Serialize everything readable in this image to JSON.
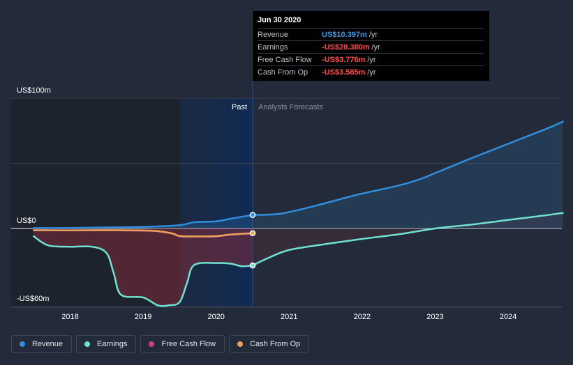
{
  "chart_data": {
    "type": "line",
    "title": "",
    "y_unit": "US$m",
    "ylim": [
      -60,
      100
    ],
    "xlim": [
      2017.5,
      2024.75
    ],
    "y_tick_labels": [
      {
        "value": 100,
        "label": "US$100m"
      },
      {
        "value": 0,
        "label": "US$0"
      },
      {
        "value": -60,
        "label": "-US$60m"
      }
    ],
    "x_ticks": [
      2018,
      2019,
      2020,
      2021,
      2022,
      2023,
      2024
    ],
    "x_tick_labels": [
      "2018",
      "2019",
      "2020",
      "2021",
      "2022",
      "2023",
      "2024"
    ],
    "past_label": "Past",
    "forecast_label": "Analysts Forecasts",
    "divider_x": 2020.5,
    "series": [
      {
        "name": "Revenue",
        "color": "#2f8fdf",
        "points": [
          [
            2017.5,
            0.3
          ],
          [
            2018.0,
            0.4
          ],
          [
            2018.5,
            0.8
          ],
          [
            2019.0,
            1.2
          ],
          [
            2019.5,
            2.5
          ],
          [
            2019.7,
            4.8
          ],
          [
            2020.0,
            5.5
          ],
          [
            2020.2,
            7.5
          ],
          [
            2020.5,
            10.4
          ]
        ],
        "forecast": [
          [
            2020.5,
            10.4
          ],
          [
            2020.8,
            10.8
          ],
          [
            2021.0,
            12.6
          ],
          [
            2021.4,
            18
          ],
          [
            2021.8,
            24
          ],
          [
            2022.0,
            26.8
          ],
          [
            2022.5,
            33
          ],
          [
            2022.8,
            38
          ],
          [
            2023.0,
            42.5
          ],
          [
            2023.5,
            54
          ],
          [
            2024.0,
            65
          ],
          [
            2024.5,
            76
          ],
          [
            2024.75,
            82
          ]
        ]
      },
      {
        "name": "Earnings",
        "color": "#6fe3d0",
        "points": [
          [
            2017.5,
            -6
          ],
          [
            2017.7,
            -13
          ],
          [
            2018.0,
            -14
          ],
          [
            2018.3,
            -14
          ],
          [
            2018.5,
            -19
          ],
          [
            2018.6,
            -35
          ],
          [
            2018.7,
            -51
          ],
          [
            2019.0,
            -53
          ],
          [
            2019.2,
            -59
          ],
          [
            2019.35,
            -59
          ],
          [
            2019.5,
            -56.5
          ],
          [
            2019.6,
            -42
          ],
          [
            2019.7,
            -28
          ],
          [
            2020.0,
            -26.5
          ],
          [
            2020.2,
            -27
          ],
          [
            2020.35,
            -29
          ],
          [
            2020.5,
            -28.4
          ]
        ],
        "forecast": [
          [
            2020.5,
            -28.4
          ],
          [
            2020.7,
            -23
          ],
          [
            2021.0,
            -16.5
          ],
          [
            2021.5,
            -12
          ],
          [
            2022.0,
            -8
          ],
          [
            2022.5,
            -4.5
          ],
          [
            2023.0,
            0
          ],
          [
            2023.5,
            3
          ],
          [
            2024.0,
            6.5
          ],
          [
            2024.5,
            10
          ],
          [
            2024.75,
            12
          ]
        ]
      },
      {
        "name": "Free Cash Flow",
        "color": "#c94677",
        "points": [
          [
            2017.5,
            -1.4
          ],
          [
            2018.0,
            -1.5
          ],
          [
            2018.5,
            -1.4
          ],
          [
            2019.0,
            -1.7
          ],
          [
            2019.2,
            -2.2
          ],
          [
            2019.4,
            -4
          ],
          [
            2019.5,
            -6
          ],
          [
            2019.7,
            -6.3
          ],
          [
            2020.0,
            -6.1
          ],
          [
            2020.2,
            -4.8
          ],
          [
            2020.5,
            -3.8
          ]
        ]
      },
      {
        "name": "Cash From Op",
        "color": "#e8a45a",
        "points": [
          [
            2017.5,
            -1.3
          ],
          [
            2018.0,
            -1.4
          ],
          [
            2018.5,
            -1.3
          ],
          [
            2019.0,
            -1.5
          ],
          [
            2019.2,
            -2
          ],
          [
            2019.4,
            -3.8
          ],
          [
            2019.5,
            -5.8
          ],
          [
            2019.7,
            -6.1
          ],
          [
            2020.0,
            -5.9
          ],
          [
            2020.2,
            -4.6
          ],
          [
            2020.5,
            -3.6
          ]
        ]
      }
    ],
    "highlight": {
      "x": 2020.5,
      "date": "Jun 30 2020",
      "rows": [
        {
          "label": "Revenue",
          "value": "US$10.397m",
          "unit": "/yr",
          "color": "#3d99e8"
        },
        {
          "label": "Earnings",
          "value": "-US$28.380m",
          "unit": "/yr",
          "color": "#ff4d4d"
        },
        {
          "label": "Free Cash Flow",
          "value": "-US$3.776m",
          "unit": "/yr",
          "color": "#ff4d4d"
        },
        {
          "label": "Cash From Op",
          "value": "-US$3.585m",
          "unit": "/yr",
          "color": "#ff4d4d"
        }
      ]
    },
    "markers": [
      {
        "series": "Revenue",
        "y": 10.4,
        "color": "#2f8fdf"
      },
      {
        "series": "Earnings",
        "y": -28.4,
        "color": "#6fe3d0"
      },
      {
        "series": "Cash From Op",
        "y": -3.6,
        "color": "#e8a45a"
      }
    ]
  },
  "legend": [
    {
      "label": "Revenue",
      "color": "#2f8fdf"
    },
    {
      "label": "Earnings",
      "color": "#6fe3d0"
    },
    {
      "label": "Free Cash Flow",
      "color": "#c94677"
    },
    {
      "label": "Cash From Op",
      "color": "#e8a45a"
    }
  ]
}
